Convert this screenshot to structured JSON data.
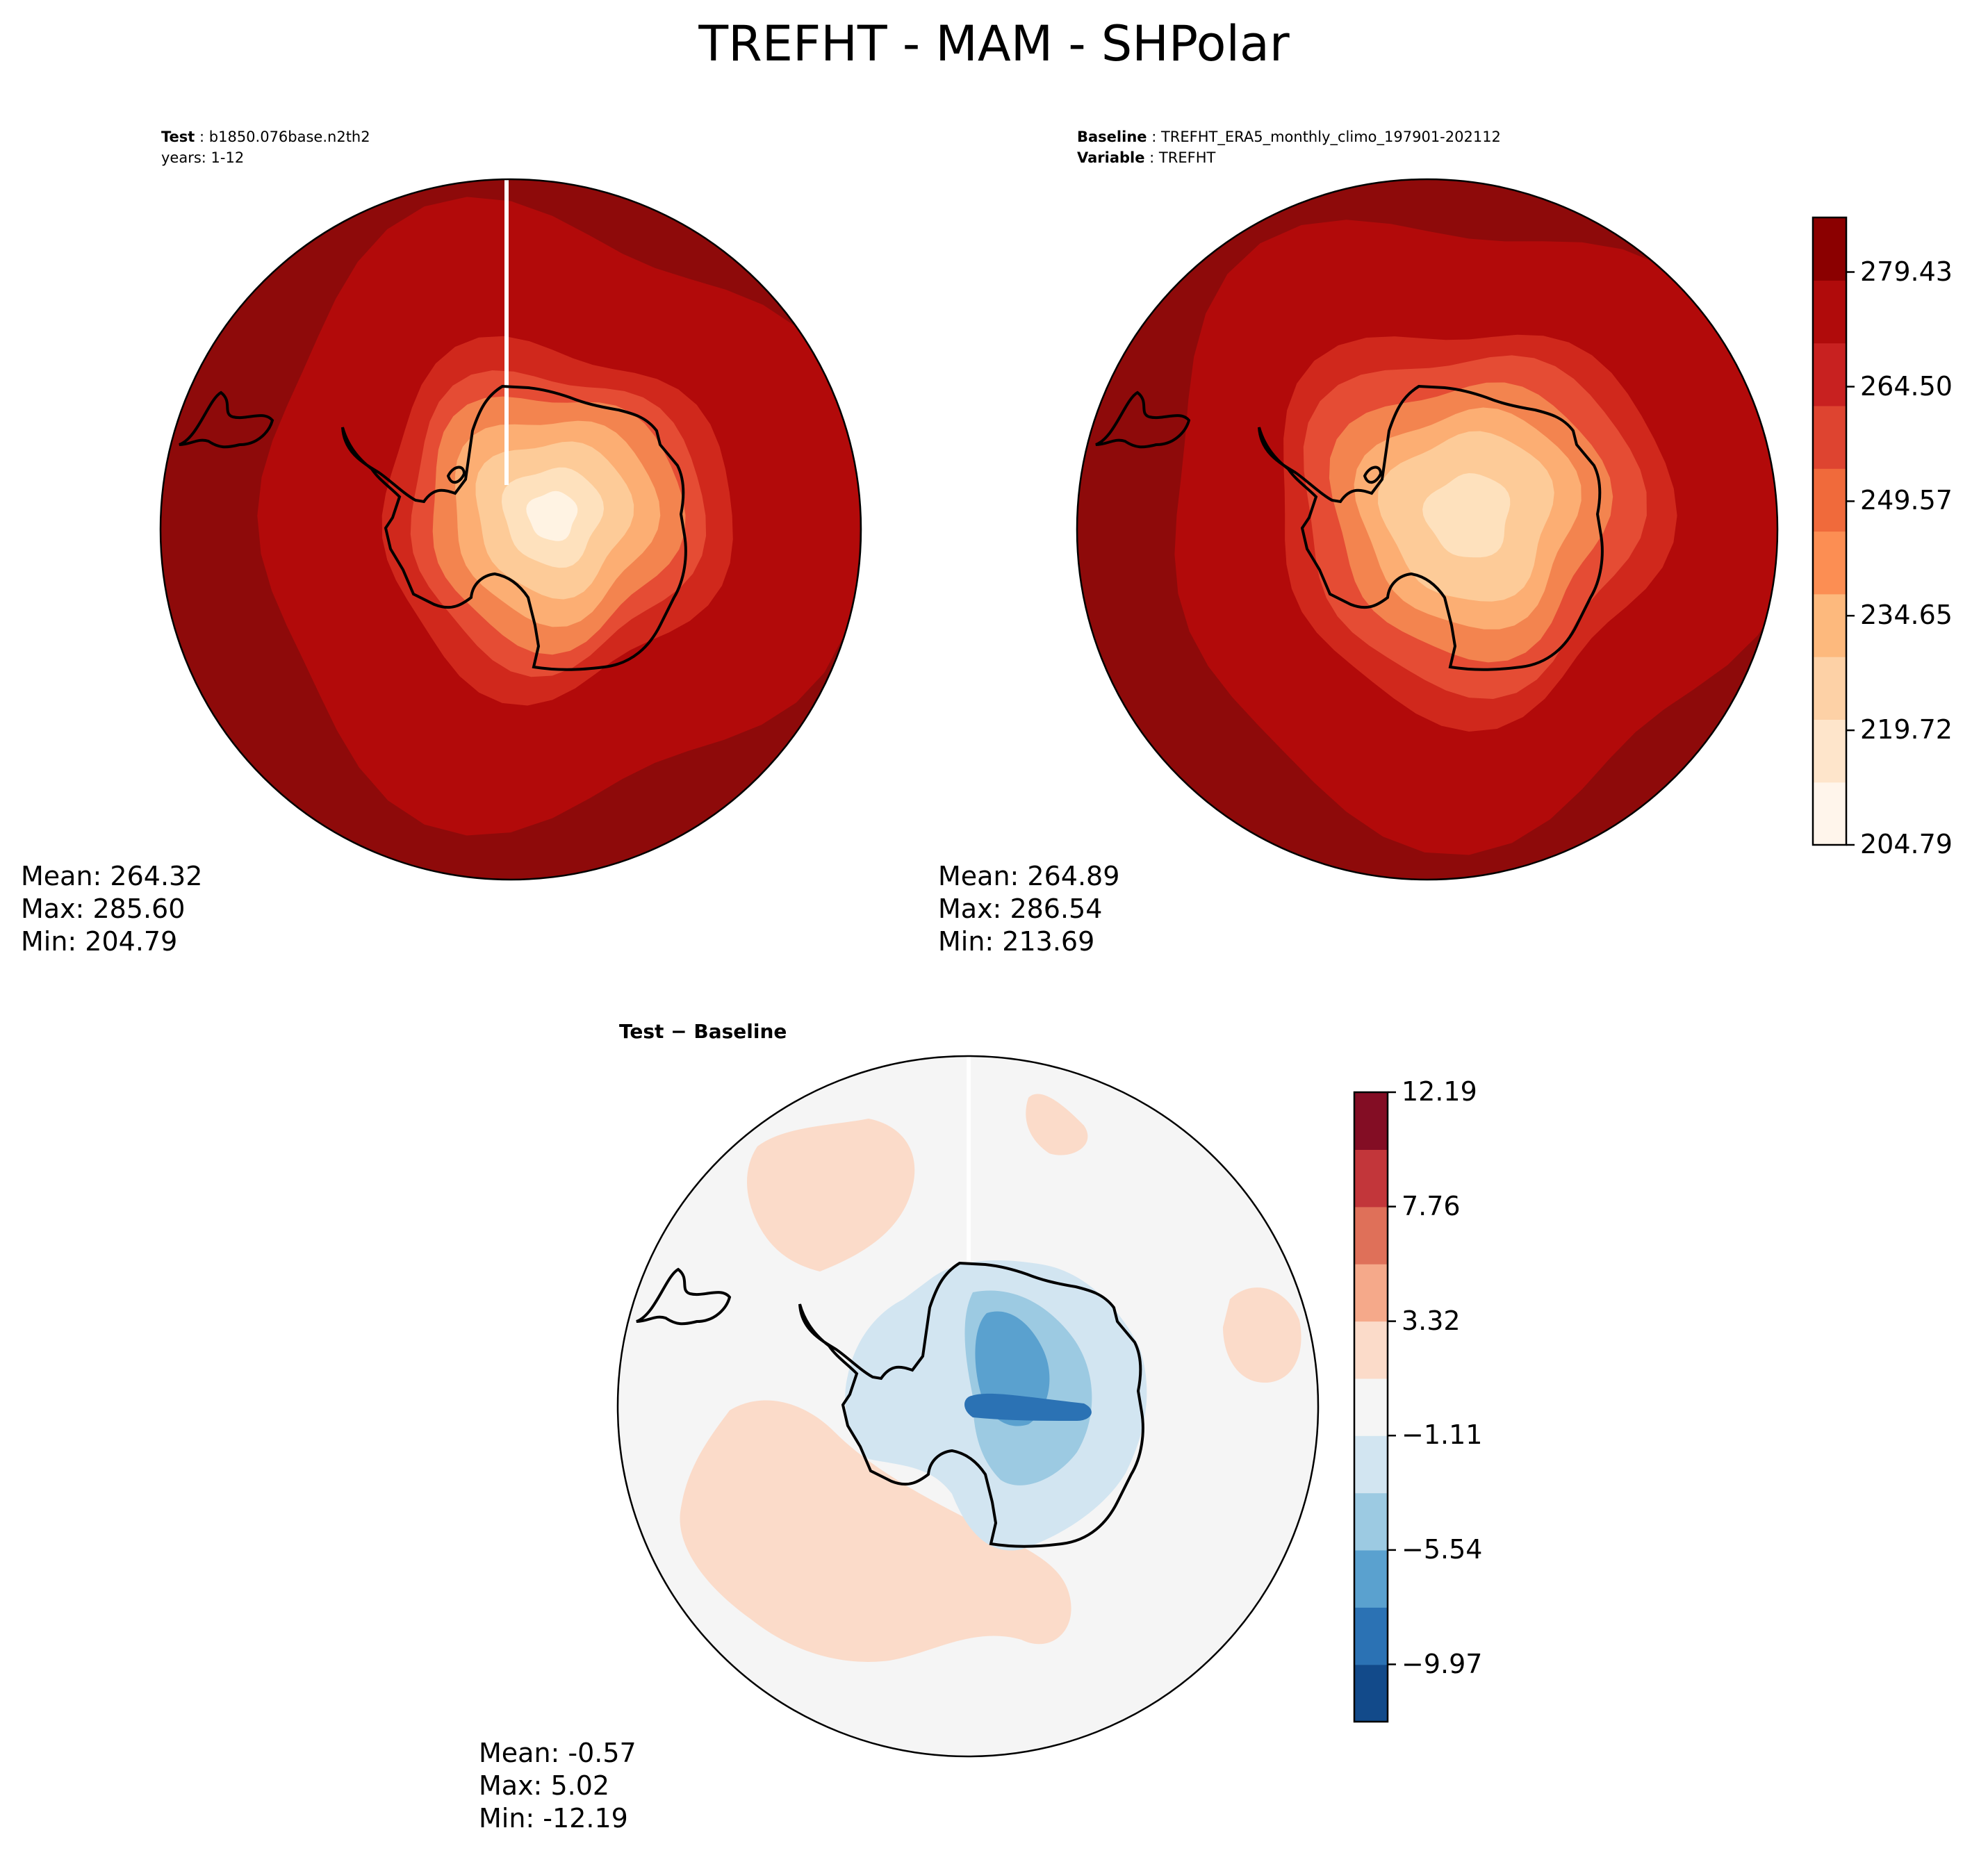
{
  "chart_data": {
    "type": "heatmap",
    "title": "TREFHT - MAM - SHPolar",
    "panels": [
      {
        "name": "test",
        "header": [
          {
            "label": "Test",
            "sep": " : ",
            "value": "b1850.076base.n2th2"
          },
          {
            "label": "",
            "sep": "",
            "value": "years: 1-12"
          }
        ],
        "stats": {
          "mean": "Mean: 264.32",
          "max": "Max: 285.60",
          "min": "Min: 204.79"
        },
        "levels_rings": [
          {
            "color": "#8e0a0a",
            "r": 1.0
          },
          {
            "color": "#b20a0a",
            "r": 0.86
          },
          {
            "color": "#d0281c",
            "r": 0.5
          },
          {
            "color": "#e54c34",
            "r": 0.42
          },
          {
            "color": "#f3844f",
            "r": 0.36
          },
          {
            "color": "#fcae73",
            "r": 0.29
          },
          {
            "color": "#fdcb98",
            "r": 0.22
          },
          {
            "color": "#fee1bd",
            "r": 0.14
          },
          {
            "color": "#fff3e3",
            "r": 0.07
          }
        ]
      },
      {
        "name": "baseline",
        "header": [
          {
            "label": "Baseline",
            "sep": " : ",
            "value": "TREFHT_ERA5_monthly_climo_197901-202112"
          },
          {
            "label": "Variable",
            "sep": " : ",
            "value": "TREFHT"
          }
        ],
        "stats": {
          "mean": "Mean: 264.89",
          "max": "Max: 286.54",
          "min": "Min: 213.69"
        },
        "levels_rings": [
          {
            "color": "#8e0a0a",
            "r": 1.0
          },
          {
            "color": "#b20a0a",
            "r": 0.88
          },
          {
            "color": "#d0281c",
            "r": 0.56
          },
          {
            "color": "#e54c34",
            "r": 0.48
          },
          {
            "color": "#f3844f",
            "r": 0.39
          },
          {
            "color": "#fcae73",
            "r": 0.31
          },
          {
            "color": "#fdcb98",
            "r": 0.24
          },
          {
            "color": "#fee1bd",
            "r": 0.12
          }
        ]
      },
      {
        "name": "difference",
        "subtitle": "Test − Baseline",
        "stats": {
          "mean": "Mean: -0.57",
          "max": "Max:  5.02",
          "min": "Min: -12.19"
        },
        "background": "#f5f5f5"
      }
    ],
    "colorbars": [
      {
        "name": "absolute",
        "range": [
          204.79,
          286.54
        ],
        "colors": [
          "#fff5eb",
          "#fee5cb",
          "#fdd1a6",
          "#fdb97d",
          "#fc8e53",
          "#f06a3b",
          "#de4430",
          "#c82120",
          "#b00b0b",
          "#8b0000"
        ],
        "ticks": [
          "279.43",
          "264.50",
          "249.57",
          "234.65",
          "219.72",
          "204.79"
        ],
        "tick_values": [
          279.43,
          264.5,
          249.57,
          234.65,
          219.72,
          204.79
        ]
      },
      {
        "name": "difference",
        "range": [
          -12.19,
          12.19
        ],
        "colors": [
          "#124a8a",
          "#2b72b4",
          "#5aa1cf",
          "#9ccae2",
          "#d2e5f1",
          "#f5f5f5",
          "#fbdbc9",
          "#f5a98a",
          "#df7059",
          "#c2363a",
          "#830d24"
        ],
        "ticks": [
          "12.19",
          "7.76",
          "3.32",
          "−1.11",
          "−5.54",
          "−9.97"
        ],
        "tick_values": [
          12.19,
          7.76,
          3.32,
          -1.11,
          -5.54,
          -9.97
        ]
      }
    ]
  }
}
